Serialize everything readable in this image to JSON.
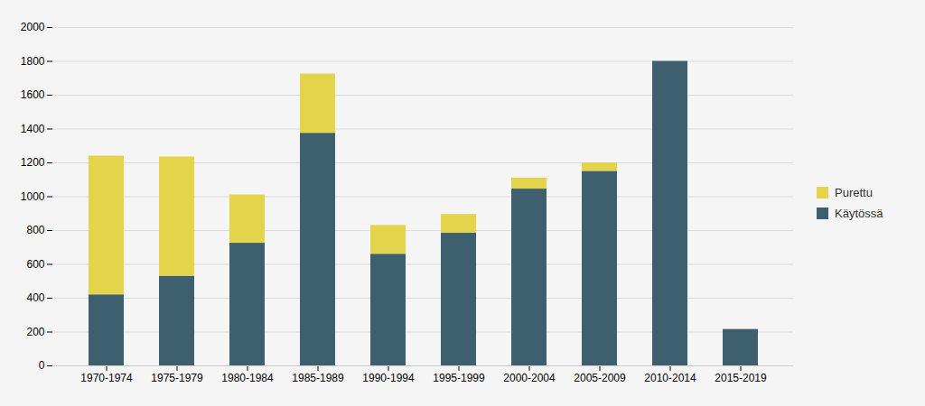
{
  "chart_data": {
    "type": "bar",
    "stacked": true,
    "categories": [
      "1970-1974",
      "1975-1979",
      "1980-1984",
      "1985-1989",
      "1990-1994",
      "1995-1999",
      "2000-2004",
      "2005-2009",
      "2010-2014",
      "2015-2019"
    ],
    "series": [
      {
        "name": "Käytössä",
        "color": "#3d5f6e",
        "values": [
          420,
          530,
          725,
          1375,
          660,
          785,
          1045,
          1150,
          1800,
          215
        ]
      },
      {
        "name": "Purettu",
        "color": "#e3d44c",
        "values": [
          820,
          705,
          285,
          350,
          170,
          110,
          65,
          50,
          0,
          0
        ]
      }
    ],
    "ylim": [
      0,
      2000
    ],
    "yticks": [
      0,
      200,
      400,
      600,
      800,
      1000,
      1200,
      1400,
      1600,
      1800,
      2000
    ],
    "grid": true,
    "legend": "right"
  }
}
